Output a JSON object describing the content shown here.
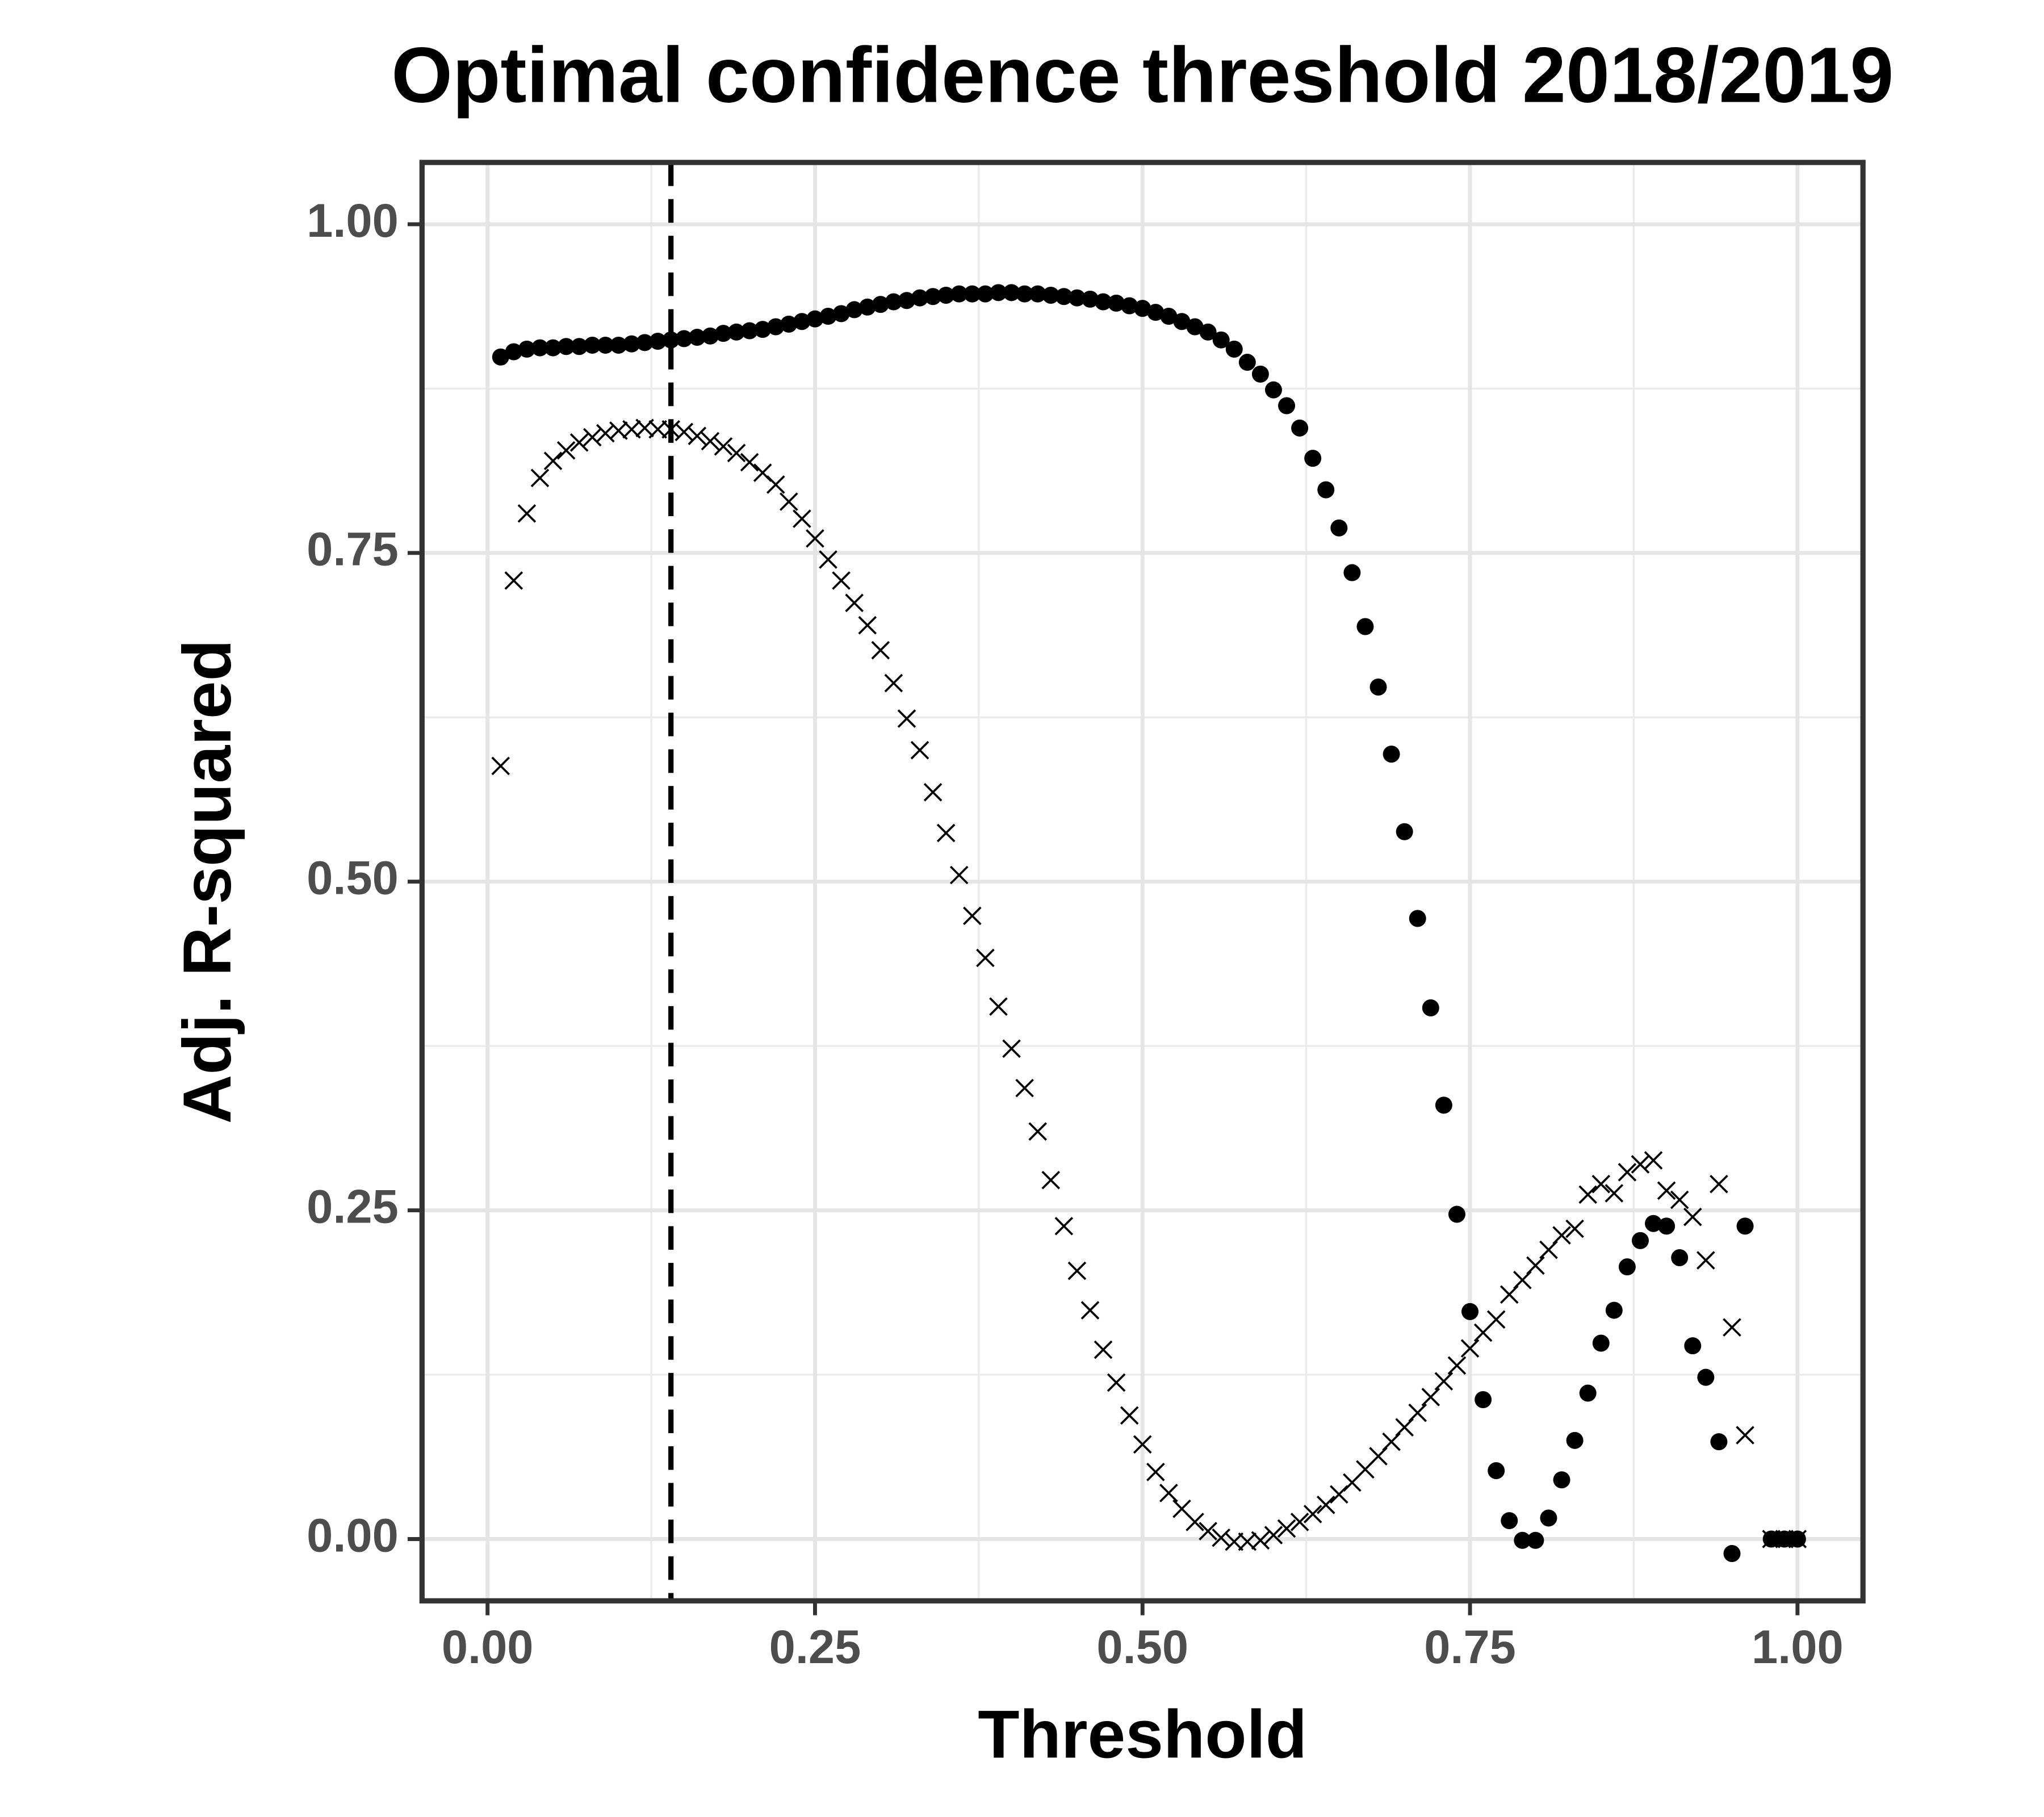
{
  "chart_data": {
    "type": "scatter",
    "title": "Optimal confidence threshold 2018/2019",
    "x_label": "Threshold",
    "y_label": "Adj. R-squared",
    "xlim": [
      -0.05,
      1.05
    ],
    "ylim": [
      -0.047,
      1.047
    ],
    "xticks": [
      {
        "value": 0,
        "label": "0.00"
      },
      {
        "value": 0.25,
        "label": "0.25"
      },
      {
        "value": 0.5,
        "label": "0.50"
      },
      {
        "value": 0.75,
        "label": "0.75"
      },
      {
        "value": 1,
        "label": "1.00"
      }
    ],
    "yticks": [
      {
        "value": 0,
        "label": "0.00"
      },
      {
        "value": 0.25,
        "label": "0.25"
      },
      {
        "value": 0.5,
        "label": "0.50"
      },
      {
        "value": 0.75,
        "label": "0.75"
      },
      {
        "value": 1,
        "label": "1.00"
      }
    ],
    "grid": true,
    "minor_grid": true,
    "vline": 0.14,
    "x": [
      0.01,
      0.02,
      0.03,
      0.04,
      0.05,
      0.06,
      0.07,
      0.08,
      0.09,
      0.1,
      0.11,
      0.12,
      0.13,
      0.14,
      0.15,
      0.16,
      0.17,
      0.18,
      0.19,
      0.2,
      0.21,
      0.22,
      0.23,
      0.24,
      0.25,
      0.26,
      0.27,
      0.28,
      0.29,
      0.3,
      0.31,
      0.32,
      0.33,
      0.34,
      0.35,
      0.36,
      0.37,
      0.38,
      0.39,
      0.4,
      0.41,
      0.42,
      0.43,
      0.44,
      0.45,
      0.46,
      0.47,
      0.48,
      0.49,
      0.5,
      0.51,
      0.52,
      0.53,
      0.54,
      0.55,
      0.56,
      0.57,
      0.58,
      0.59,
      0.6,
      0.61,
      0.62,
      0.63,
      0.64,
      0.65,
      0.66,
      0.67,
      0.68,
      0.69,
      0.7,
      0.71,
      0.72,
      0.73,
      0.74,
      0.75,
      0.76,
      0.77,
      0.78,
      0.79,
      0.8,
      0.81,
      0.82,
      0.83,
      0.84,
      0.85,
      0.86,
      0.87,
      0.88,
      0.89,
      0.9,
      0.91,
      0.92,
      0.93,
      0.94,
      0.95,
      0.96,
      0.97,
      0.98,
      0.99,
      1
    ],
    "series": [
      {
        "marker": "circle",
        "color": "#000000",
        "values": [
          0.899,
          0.903,
          0.905,
          0.906,
          0.906,
          0.907,
          0.907,
          0.908,
          0.908,
          0.908,
          0.909,
          0.91,
          0.911,
          0.912,
          0.913,
          0.914,
          0.915,
          0.917,
          0.918,
          0.919,
          0.92,
          0.922,
          0.924,
          0.926,
          0.928,
          0.93,
          0.932,
          0.935,
          0.937,
          0.939,
          0.941,
          0.942,
          0.944,
          0.945,
          0.946,
          0.947,
          0.947,
          0.947,
          0.948,
          0.948,
          0.947,
          0.947,
          0.946,
          0.945,
          0.944,
          0.943,
          0.941,
          0.94,
          0.938,
          0.936,
          0.933,
          0.93,
          0.926,
          0.922,
          0.918,
          0.912,
          0.905,
          0.895,
          0.886,
          0.874,
          0.862,
          0.845,
          0.822,
          0.798,
          0.769,
          0.735,
          0.694,
          0.648,
          0.597,
          0.538,
          0.472,
          0.404,
          0.33,
          0.247,
          0.173,
          0.106,
          0.052,
          0.014,
          -0.001,
          -0.001,
          0.016,
          0.045,
          0.075,
          0.111,
          0.149,
          0.174,
          0.207,
          0.227,
          0.24,
          0.238,
          0.214,
          0.147,
          0.123,
          0.074,
          -0.011,
          0.238,
          null,
          0,
          0,
          0
        ]
      },
      {
        "marker": "cross",
        "color": "#000000",
        "values": [
          0.588,
          0.729,
          0.78,
          0.807,
          0.82,
          0.828,
          0.834,
          0.838,
          0.841,
          0.843,
          0.844,
          0.845,
          0.844,
          0.844,
          0.842,
          0.839,
          0.835,
          0.831,
          0.826,
          0.819,
          0.811,
          0.802,
          0.789,
          0.776,
          0.761,
          0.745,
          0.729,
          0.712,
          0.695,
          0.676,
          0.651,
          0.624,
          0.6,
          0.568,
          0.537,
          0.505,
          0.474,
          0.442,
          0.405,
          0.373,
          0.343,
          0.31,
          0.273,
          0.238,
          0.204,
          0.174,
          0.144,
          0.119,
          0.094,
          0.072,
          0.051,
          0.035,
          0.023,
          0.013,
          0.006,
          0.001,
          -0.002,
          -0.002,
          -0.001,
          0.003,
          0.008,
          0.013,
          0.019,
          0.026,
          0.034,
          0.043,
          0.053,
          0.063,
          0.074,
          0.085,
          0.096,
          0.108,
          0.12,
          0.132,
          0.145,
          0.157,
          0.167,
          0.186,
          0.197,
          0.208,
          0.22,
          0.231,
          0.236,
          0.262,
          0.27,
          0.263,
          0.279,
          0.285,
          0.288,
          0.265,
          0.258,
          0.245,
          0.212,
          0.27,
          0.161,
          0.079,
          null,
          0,
          0,
          0
        ]
      }
    ]
  }
}
